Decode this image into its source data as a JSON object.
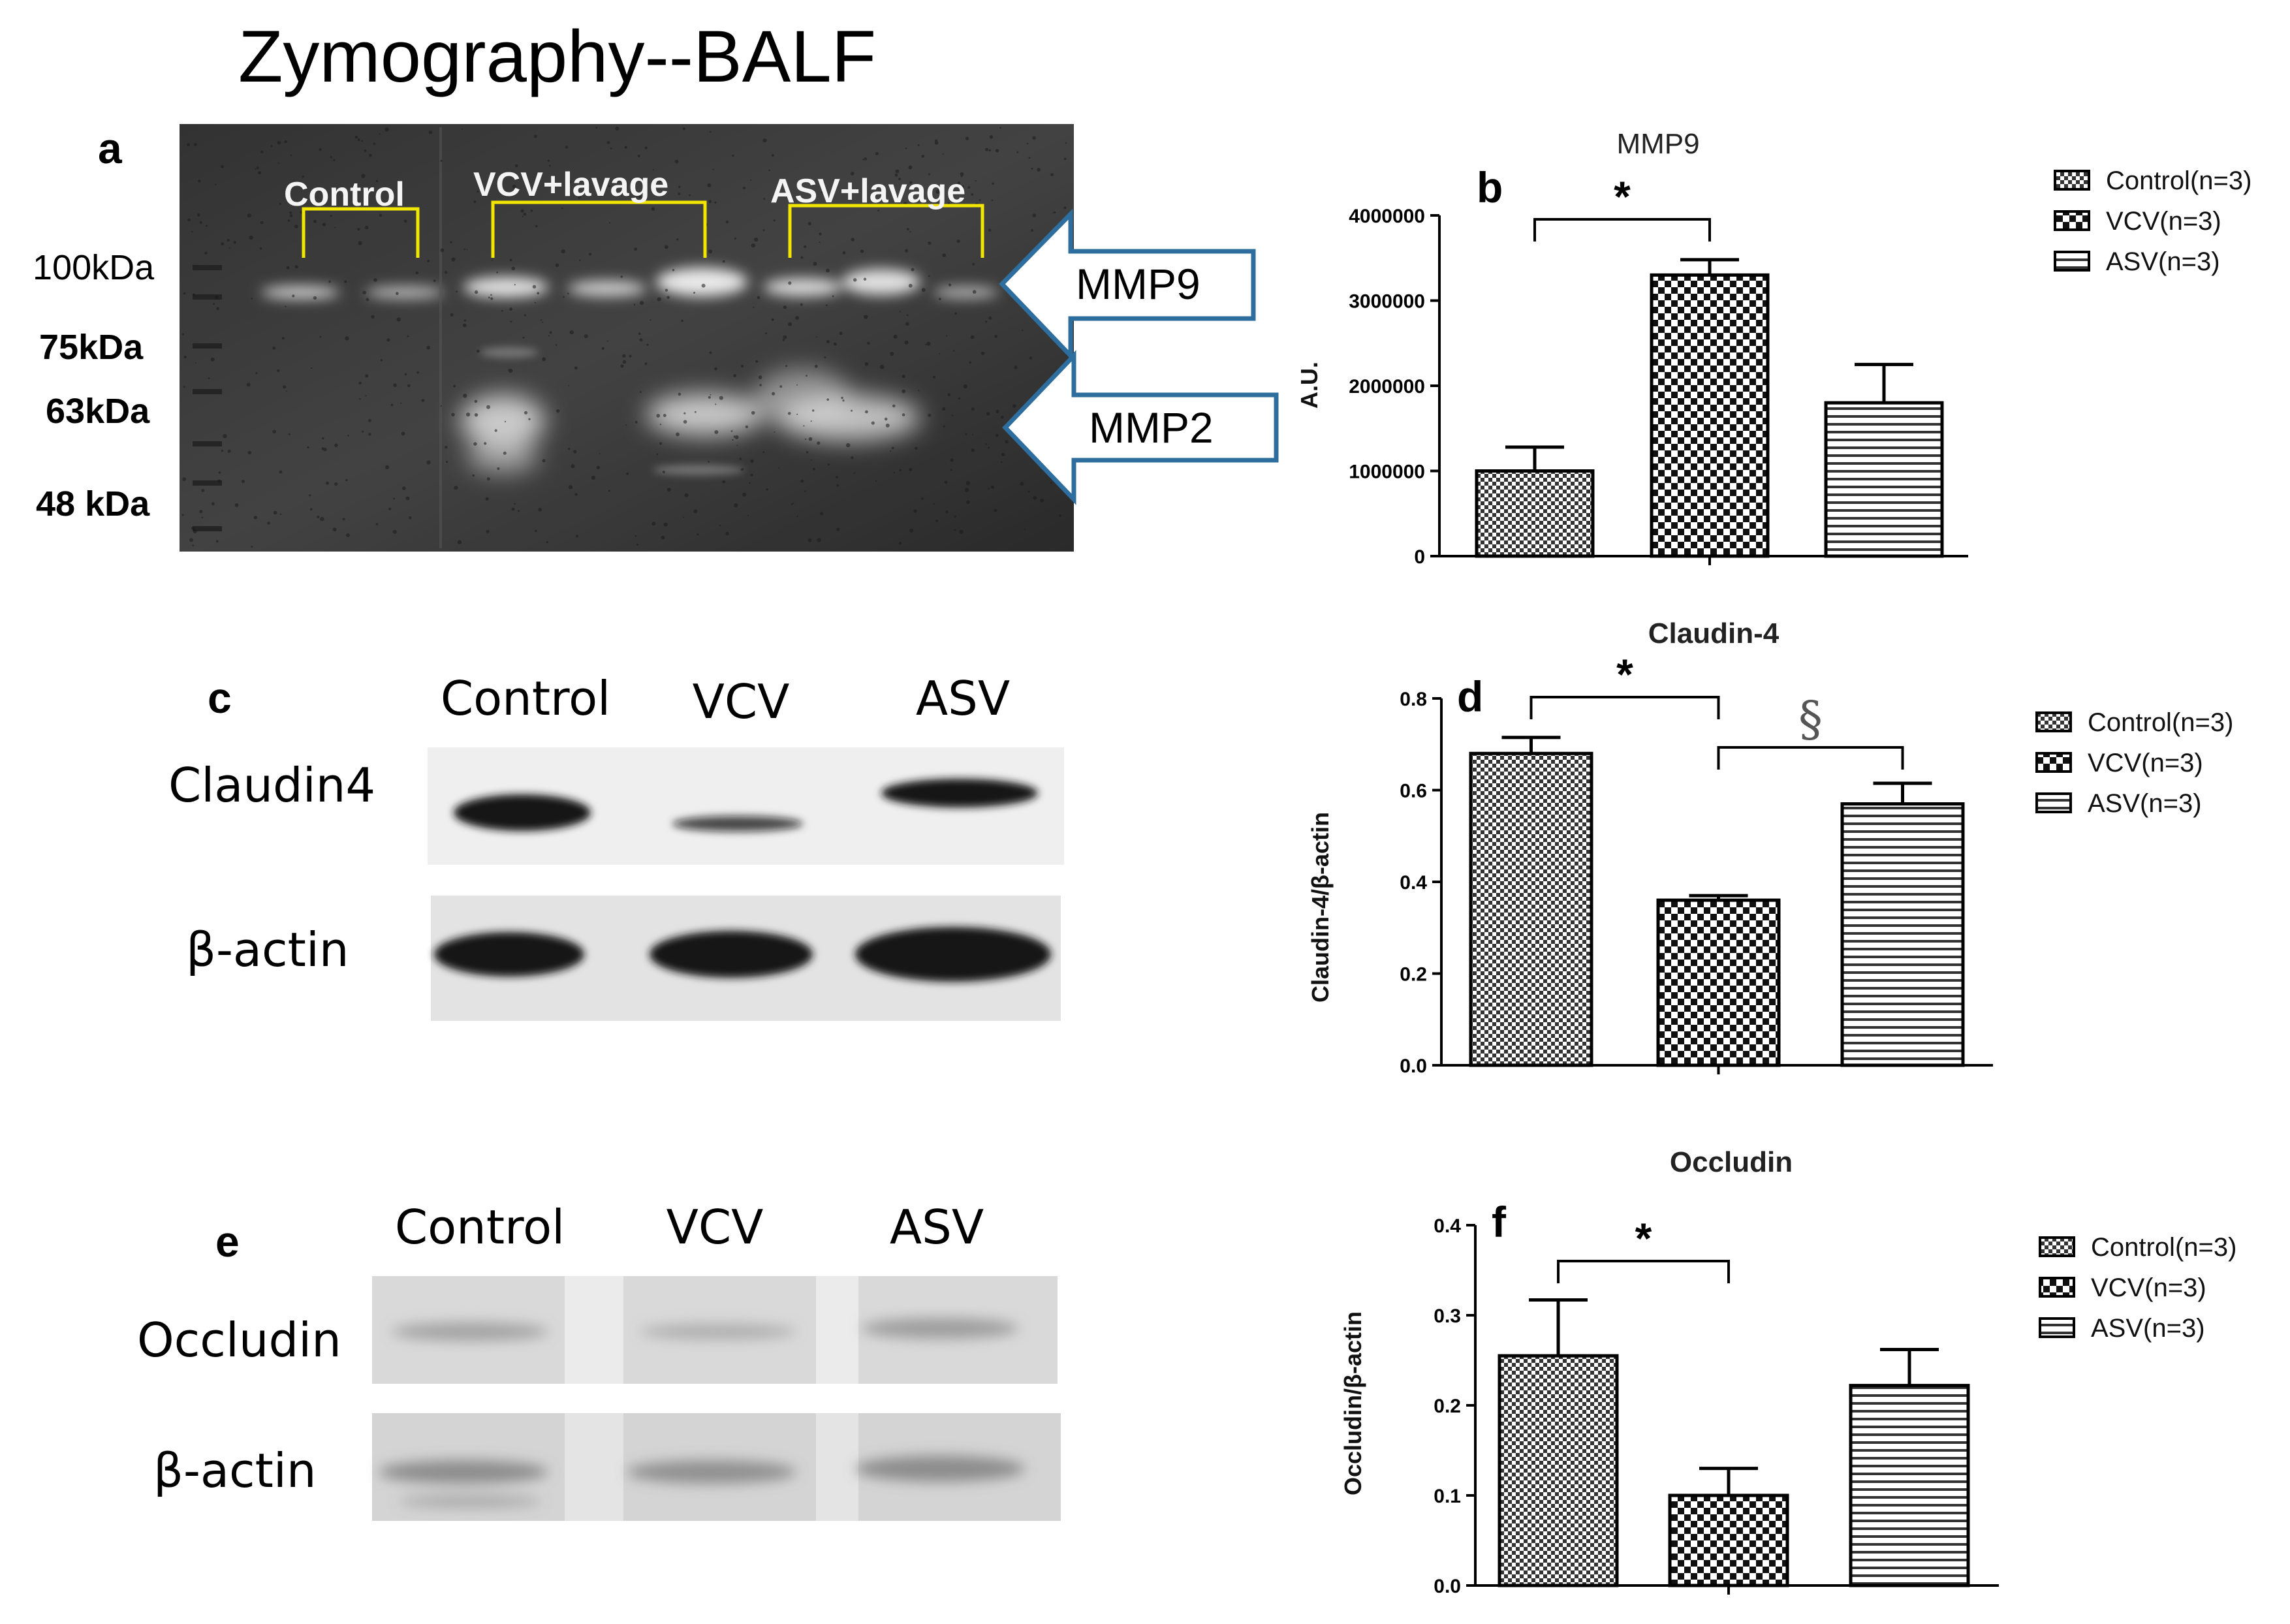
{
  "figure": {
    "zymo_title": "Zymography--BALF",
    "panel_letters": [
      "a",
      "b",
      "c",
      "d",
      "e",
      "f"
    ]
  },
  "zymography": {
    "lane_groups": [
      "Control",
      "VCV+lavage",
      "ASV+lavage"
    ],
    "markers": [
      "100kDa",
      "75kDa",
      "63kDa",
      "48 kDa"
    ],
    "arrows": [
      "MMP9",
      "MMP2"
    ]
  },
  "blot_claudin": {
    "columns": [
      "Control",
      "VCV",
      "ASV"
    ],
    "rows": [
      "Claudin4",
      "β-actin"
    ]
  },
  "blot_occludin": {
    "columns": [
      "Control",
      "VCV",
      "ASV"
    ],
    "rows": [
      "Occludin",
      "β-actin"
    ]
  },
  "colors": {
    "frame_blue": "#2e6e9e",
    "bracket_yellow": "#f2e600"
  },
  "chart_data": [
    {
      "type": "bar",
      "title": "MMP9",
      "ylabel": "A.U.",
      "categories": [
        "Control(n=3)",
        "VCV(n=3)",
        "ASV(n=3)"
      ],
      "values": [
        1000000,
        3300000,
        1800000
      ],
      "errors": [
        280000,
        180000,
        450000
      ],
      "ylim": [
        0,
        4000000
      ],
      "yticks": [
        "0",
        "1000000",
        "2000000",
        "3000000",
        "4000000"
      ],
      "patterns": [
        "fine-check",
        "coarse-check",
        "h-stripe"
      ],
      "legend": [
        "Control(n=3)",
        "VCV(n=3)",
        "ASV(n=3)"
      ],
      "legend_position": "top-right",
      "significance": [
        {
          "from": 0,
          "to": 1,
          "symbol": "*"
        }
      ]
    },
    {
      "type": "bar",
      "title": "Claudin-4",
      "ylabel": "Claudin-4/β-actin",
      "categories": [
        "Control(n=3)",
        "VCV(n=3)",
        "ASV(n=3)"
      ],
      "values": [
        0.68,
        0.36,
        0.57
      ],
      "errors": [
        0.035,
        0.01,
        0.045
      ],
      "ylim": [
        0,
        0.8
      ],
      "yticks": [
        "0.0",
        "0.2",
        "0.4",
        "0.6",
        "0.8"
      ],
      "patterns": [
        "fine-check",
        "coarse-check",
        "h-stripe"
      ],
      "legend": [
        "Control(n=3)",
        "VCV(n=3)",
        "ASV(n=3)"
      ],
      "legend_position": "top-right",
      "significance": [
        {
          "from": 0,
          "to": 1,
          "symbol": "*"
        },
        {
          "from": 1,
          "to": 2,
          "symbol": "§"
        }
      ]
    },
    {
      "type": "bar",
      "title": "Occludin",
      "ylabel": "Occludin/β-actin",
      "categories": [
        "Control(n=3)",
        "VCV(n=3)",
        "ASV(n=3)"
      ],
      "values": [
        0.255,
        0.1,
        0.222
      ],
      "errors": [
        0.062,
        0.03,
        0.04
      ],
      "ylim": [
        0,
        0.4
      ],
      "yticks": [
        "0.0",
        "0.1",
        "0.2",
        "0.3",
        "0.4"
      ],
      "patterns": [
        "fine-check",
        "coarse-check",
        "h-stripe"
      ],
      "legend": [
        "Control(n=3)",
        "VCV(n=3)",
        "ASV(n=3)"
      ],
      "legend_position": "top-right",
      "significance": [
        {
          "from": 0,
          "to": 1,
          "symbol": "*"
        }
      ]
    }
  ]
}
